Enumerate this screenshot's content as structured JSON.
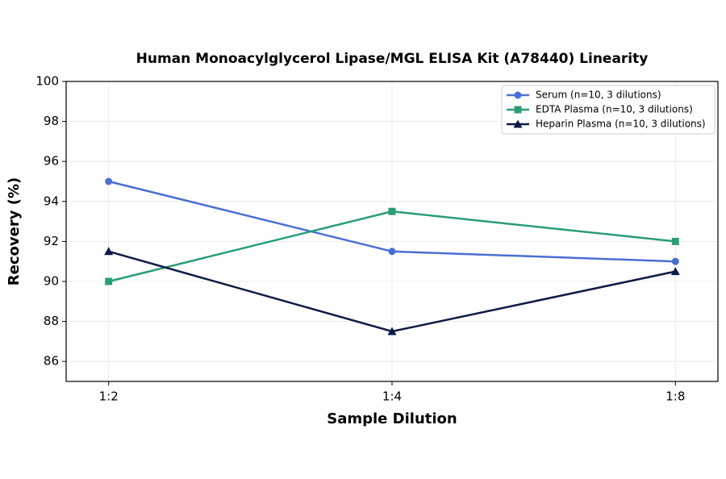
{
  "chart_data": {
    "type": "line",
    "title": "Human Monoacylglycerol Lipase/MGL ELISA Kit (A78440) Linearity",
    "x_label": "Sample Dilution",
    "y_label": "Recovery (%)",
    "categories": [
      "1:2",
      "1:4",
      "1:8"
    ],
    "series": [
      {
        "name": "Serum (n=10, 3 dilutions)",
        "color": "#4a6fd4",
        "marker": "circle",
        "values": [
          95,
          91.5,
          91
        ]
      },
      {
        "name": "EDTA Plasma (n=10, 3 dilutions)",
        "color": "#2a9d78",
        "marker": "square",
        "values": [
          90,
          93.5,
          92
        ]
      },
      {
        "name": "Heparin Plasma (n=10, 3 dilutions)",
        "color": "#0d1b45",
        "marker": "triangle",
        "values": [
          91.5,
          87.5,
          90.5
        ]
      }
    ],
    "ylim": [
      85,
      100
    ],
    "yticks": [
      86,
      88,
      90,
      92,
      94,
      96,
      98,
      100
    ],
    "grid": true,
    "legend": "upper-right"
  }
}
